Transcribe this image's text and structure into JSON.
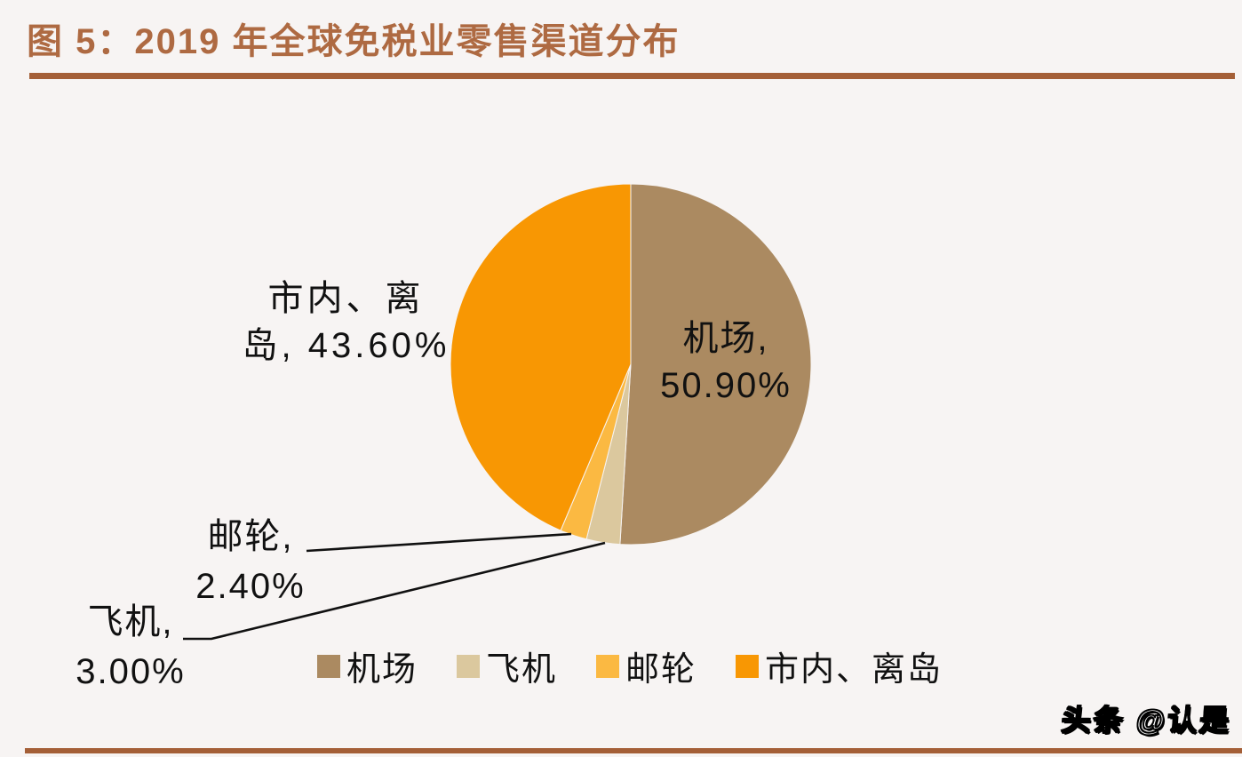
{
  "page": {
    "background_color": "#f7f4f3",
    "accent_rule_color": "#a45f37"
  },
  "header": {
    "title": "图 5：2019 年全球免税业零售渠道分布",
    "title_color": "#ae6a42"
  },
  "watermark": {
    "text": "头条 @认是"
  },
  "chart_data": {
    "type": "pie",
    "title": "2019 年全球免税业零售渠道分布",
    "start_angle": "12-oclock",
    "direction": "clockwise",
    "legend_position": "bottom",
    "unit": "%",
    "series": [
      {
        "key": "airport",
        "name": "机场",
        "value": 50.9,
        "color": "#ab8a61",
        "label_line1": "机场,",
        "label_line2": "50.90%"
      },
      {
        "key": "plane",
        "name": "飞机",
        "value": 3.0,
        "color": "#dbc89e",
        "label_line1": "飞机,",
        "label_line2": "3.00%"
      },
      {
        "key": "cruise",
        "name": "邮轮",
        "value": 2.4,
        "color": "#fbb942",
        "label_line1": "邮轮,",
        "label_line2": "2.40%"
      },
      {
        "key": "city",
        "name": "市内、离岛",
        "value": 43.6,
        "color": "#f89703",
        "label_line1": "市内、离",
        "label_line2": "岛, 43.60%"
      }
    ]
  }
}
